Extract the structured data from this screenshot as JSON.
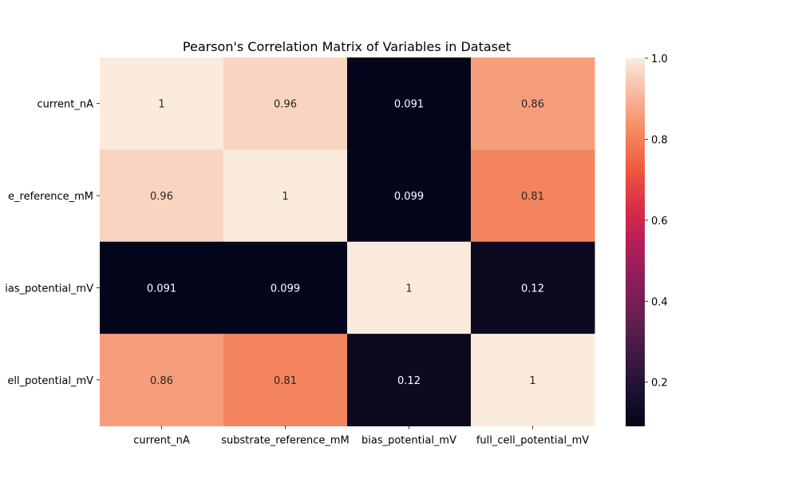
{
  "chart_data": {
    "type": "heatmap",
    "title": "Pearson's Correlation Matrix of Variables in Dataset",
    "xlabel": "",
    "ylabel": "",
    "x_categories": [
      "current_nA",
      "substrate_reference_mM",
      "bias_potential_mV",
      "full_cell_potential_mV"
    ],
    "y_categories": [
      "current_nA",
      "e_reference_mM",
      "ias_potential_mV",
      "ell_potential_mV"
    ],
    "values": [
      [
        1,
        0.96,
        0.091,
        0.86
      ],
      [
        0.96,
        1,
        0.099,
        0.81
      ],
      [
        0.091,
        0.099,
        1,
        0.12
      ],
      [
        0.86,
        0.81,
        0.12,
        1
      ]
    ],
    "annotations": [
      [
        "1",
        "0.96",
        "0.091",
        "0.86"
      ],
      [
        "0.96",
        "1",
        "0.099",
        "0.81"
      ],
      [
        "0.091",
        "0.099",
        "1",
        "0.12"
      ],
      [
        "0.86",
        "0.81",
        "0.12",
        "1"
      ]
    ],
    "colorbar": {
      "range": [
        0.091,
        1.0
      ],
      "ticks": [
        0.2,
        0.4,
        0.6,
        0.8,
        1.0
      ],
      "tick_labels": [
        "0.2",
        "0.4",
        "0.6",
        "0.8",
        "1.0"
      ]
    },
    "colormap": "rocket",
    "colorscale": [
      [
        0.0,
        "#03051a"
      ],
      [
        0.1,
        "#1e1231"
      ],
      [
        0.2,
        "#401a44"
      ],
      [
        0.3,
        "#67204f"
      ],
      [
        0.4,
        "#8e1d5b"
      ],
      [
        0.5,
        "#b61e57"
      ],
      [
        0.6,
        "#da2f48"
      ],
      [
        0.7,
        "#ee5a3f"
      ],
      [
        0.8,
        "#f58860"
      ],
      [
        0.9,
        "#f7b79d"
      ],
      [
        1.0,
        "#faebdd"
      ]
    ],
    "grid": false
  }
}
